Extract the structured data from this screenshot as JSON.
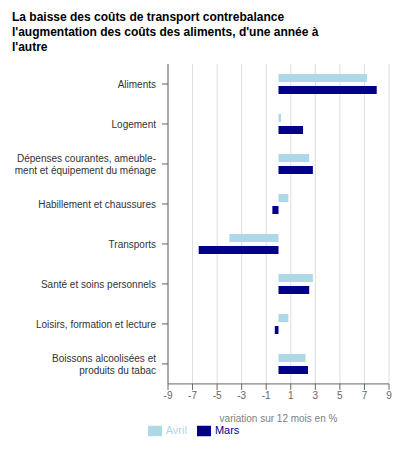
{
  "chart_data": {
    "type": "bar",
    "orientation": "horizontal",
    "title": "La baisse des coûts de transport contrebalance\nl'augmentation des coûts des aliments, d'une année à\nl'autre",
    "categories": [
      "Aliments",
      "Logement",
      "Dépenses courantes, ameuble-\nment et équipement du ménage",
      "Habillement et chaussures",
      "Transports",
      "Santé et soins personnels",
      "Loisirs, formation et lecture",
      "Boissons alcoolisées et\nproduits du tabac"
    ],
    "series": [
      {
        "name": "Avril",
        "color": "#ADD8E6",
        "values": [
          7.2,
          0.2,
          2.5,
          0.8,
          -4.0,
          2.8,
          0.8,
          2.2
        ]
      },
      {
        "name": "Mars",
        "color": "#00008B",
        "values": [
          8.0,
          2.0,
          2.8,
          -0.5,
          -6.5,
          2.5,
          -0.3,
          2.4
        ]
      }
    ],
    "xlabel": "variation sur 12 mois en %",
    "xlim": [
      -9,
      9
    ],
    "xticks": [
      -9,
      -7,
      -5,
      -3,
      -1,
      1,
      3,
      5,
      7,
      9
    ],
    "grid": true,
    "legend": "bottom"
  }
}
